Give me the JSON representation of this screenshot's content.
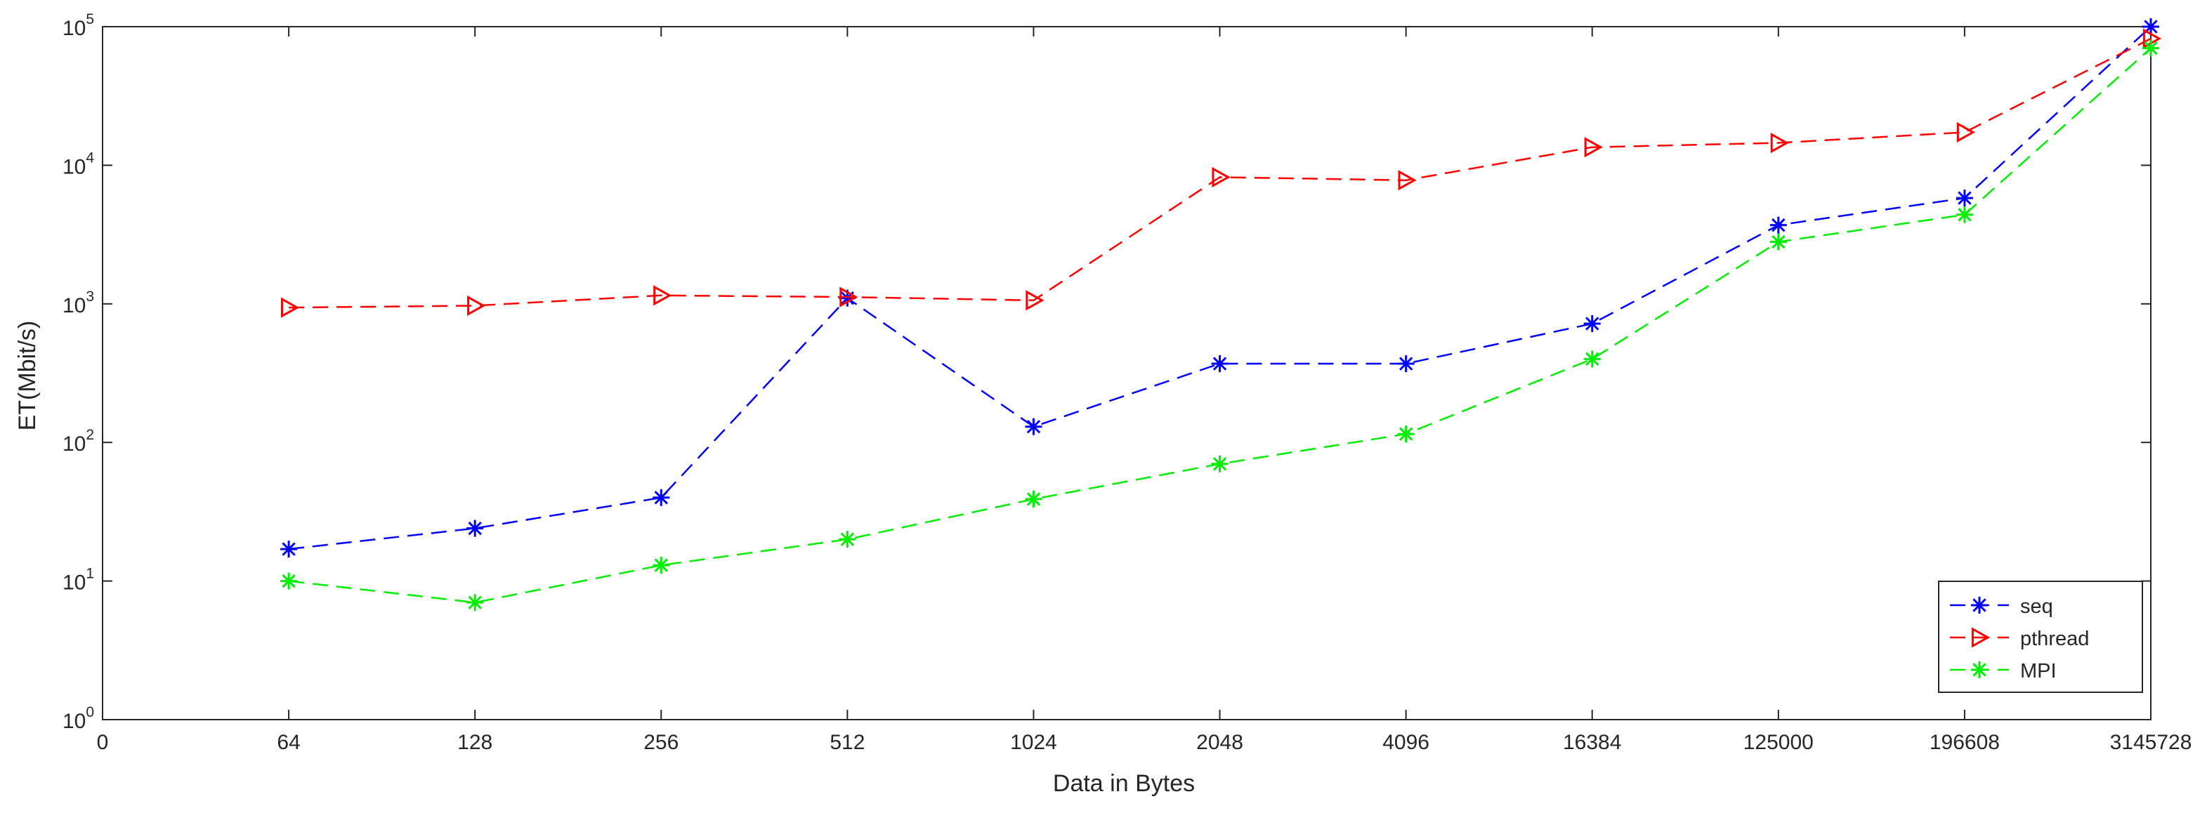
{
  "chart_data": {
    "type": "line",
    "title": "",
    "xlabel": "Data in Bytes",
    "ylabel": "ET(Mbit/s)",
    "x_scale": "categorical",
    "y_scale": "log",
    "ylim": [
      1,
      100000
    ],
    "y_ticks": [
      1,
      10,
      100,
      1000,
      10000,
      100000
    ],
    "y_tick_labels": [
      {
        "base": "10",
        "exp": "0"
      },
      {
        "base": "10",
        "exp": "1"
      },
      {
        "base": "10",
        "exp": "2"
      },
      {
        "base": "10",
        "exp": "3"
      },
      {
        "base": "10",
        "exp": "4"
      },
      {
        "base": "10",
        "exp": "5"
      }
    ],
    "x_tick_labels": [
      "0",
      "64",
      "128",
      "256",
      "512",
      "1024",
      "2048",
      "4096",
      "16384",
      "125000",
      "196608",
      "3145728"
    ],
    "categories": [
      "64",
      "128",
      "256",
      "512",
      "1024",
      "2048",
      "4096",
      "16384",
      "125000",
      "196608",
      "3145728"
    ],
    "grid": false,
    "legend_position": "bottom-right",
    "series": [
      {
        "name": "seq",
        "color": "#0000ff",
        "marker": "asterisk",
        "line_style": "dashed",
        "values": [
          17,
          24,
          40,
          1100,
          130,
          370,
          370,
          720,
          3700,
          5800,
          100000
        ]
      },
      {
        "name": "pthread",
        "color": "#ff0000",
        "marker": "triangle-right",
        "line_style": "dashed",
        "values": [
          940,
          970,
          1150,
          1120,
          1060,
          8200,
          7800,
          13500,
          14500,
          17300,
          82000
        ]
      },
      {
        "name": "MPI",
        "color": "#00ee00",
        "marker": "asterisk",
        "line_style": "dashed",
        "values": [
          10,
          7,
          13,
          20,
          39,
          70,
          115,
          400,
          2800,
          4400,
          70000
        ]
      }
    ]
  }
}
